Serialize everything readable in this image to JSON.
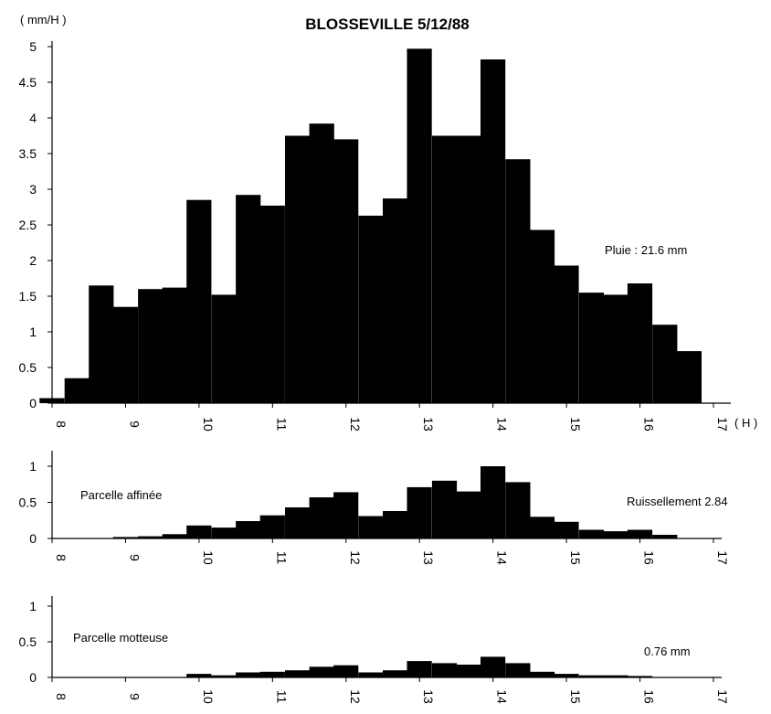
{
  "chart_data": [
    {
      "type": "bar",
      "title": "BLOSSEVILLE    5/12/88",
      "ylabel": "( mm/H )",
      "xlabel": "( H )",
      "annotation": "Pluie : 21.6 mm",
      "x_ticks": [
        "8",
        "9",
        "10",
        "11",
        "12",
        "13",
        "14",
        "15",
        "16",
        "17"
      ],
      "y_ticks": [
        "0",
        "0.5",
        "1",
        "1.5",
        "2",
        "2.5",
        "3",
        "3.5",
        "4",
        "4.5",
        "5"
      ],
      "xlim": [
        8,
        17
      ],
      "ylim": [
        0,
        5
      ],
      "bin_width_h": 0.333,
      "x_start": [
        7.83,
        8.17,
        8.5,
        8.83,
        9.17,
        9.5,
        9.83,
        10.17,
        10.5,
        10.83,
        11.17,
        11.5,
        11.83,
        12.17,
        12.5,
        12.83,
        13.17,
        13.5,
        13.83,
        14.17,
        14.5,
        14.83,
        15.17,
        15.5,
        15.83,
        16.17,
        16.5
      ],
      "values": [
        0.07,
        0.35,
        1.65,
        1.35,
        1.6,
        1.62,
        2.85,
        1.52,
        2.92,
        2.77,
        3.75,
        3.92,
        3.7,
        2.63,
        2.87,
        4.97,
        3.75,
        3.75,
        4.82,
        3.42,
        2.43,
        1.93,
        1.55,
        1.52,
        1.68,
        1.1,
        0.73
      ]
    },
    {
      "type": "bar",
      "annotation": "Parcelle affinée",
      "annotation_right": "Ruissellement  2.84",
      "x_ticks": [
        "8",
        "9",
        "10",
        "11",
        "12",
        "13",
        "14",
        "15",
        "16",
        "17"
      ],
      "y_ticks": [
        "0",
        "0.5",
        "1"
      ],
      "xlim": [
        8,
        17
      ],
      "ylim": [
        0,
        1.2
      ],
      "bin_width_h": 0.333,
      "x_start": [
        8.83,
        9.17,
        9.5,
        9.83,
        10.17,
        10.5,
        10.83,
        11.17,
        11.5,
        11.83,
        12.17,
        12.5,
        12.83,
        13.17,
        13.5,
        13.83,
        14.17,
        14.5,
        14.83,
        15.17,
        15.5,
        15.83,
        16.17
      ],
      "values": [
        0.02,
        0.03,
        0.06,
        0.18,
        0.15,
        0.24,
        0.32,
        0.43,
        0.57,
        0.64,
        0.31,
        0.38,
        0.71,
        0.8,
        0.65,
        1.0,
        0.78,
        0.3,
        0.23,
        0.12,
        0.1,
        0.12,
        0.05
      ]
    },
    {
      "type": "bar",
      "annotation": "Parcelle motteuse",
      "annotation_right": "0.76  mm",
      "x_ticks": [
        "8",
        "9",
        "10",
        "11",
        "12",
        "13",
        "14",
        "15",
        "16",
        "17"
      ],
      "y_ticks": [
        "0",
        "0.5",
        "1"
      ],
      "xlim": [
        8,
        17
      ],
      "ylim": [
        0,
        1.2
      ],
      "bin_width_h": 0.333,
      "x_start": [
        9.83,
        10.17,
        10.5,
        10.83,
        11.17,
        11.5,
        11.83,
        12.17,
        12.5,
        12.83,
        13.17,
        13.5,
        13.83,
        14.17,
        14.5,
        14.83,
        15.17,
        15.5,
        15.83
      ],
      "values": [
        0.05,
        0.03,
        0.07,
        0.08,
        0.1,
        0.15,
        0.17,
        0.07,
        0.1,
        0.23,
        0.2,
        0.18,
        0.29,
        0.2,
        0.08,
        0.05,
        0.03,
        0.03,
        0.02
      ]
    }
  ],
  "colors": {
    "bar": "#000000",
    "axis": "#000000",
    "background": "#ffffff"
  }
}
